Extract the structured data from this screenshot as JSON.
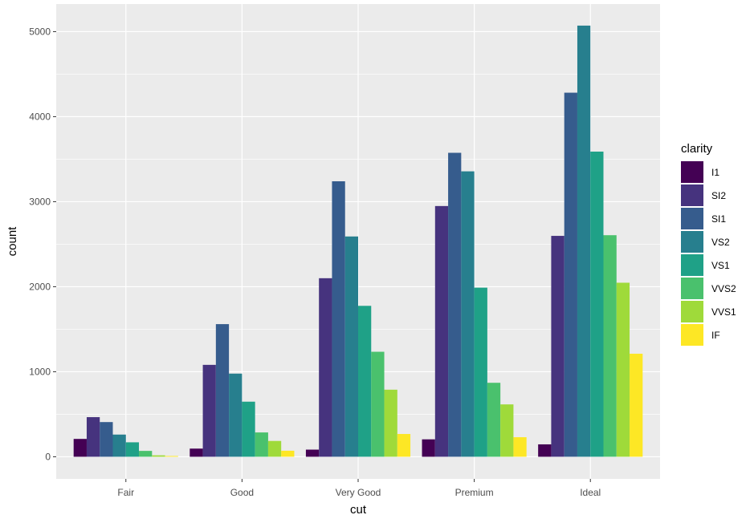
{
  "chart_data": {
    "type": "bar",
    "title": "",
    "xlabel": "cut",
    "ylabel": "count",
    "categories": [
      "Fair",
      "Good",
      "Very Good",
      "Premium",
      "Ideal"
    ],
    "ylim": [
      -260,
      5325
    ],
    "yticks": [
      0,
      1000,
      2000,
      3000,
      4000,
      5000
    ],
    "grid": true,
    "legend": {
      "title": "clarity",
      "placement": "right"
    },
    "series": [
      {
        "name": "I1",
        "color": "#440154",
        "values": [
          210,
          96,
          84,
          205,
          146
        ]
      },
      {
        "name": "SI2",
        "color": "#46337E",
        "values": [
          466,
          1081,
          2100,
          2949,
          2598
        ]
      },
      {
        "name": "SI1",
        "color": "#365C8D",
        "values": [
          408,
          1560,
          3240,
          3575,
          4282
        ]
      },
      {
        "name": "VS2",
        "color": "#277F8E",
        "values": [
          261,
          978,
          2591,
          3357,
          5071
        ]
      },
      {
        "name": "VS1",
        "color": "#1FA187",
        "values": [
          170,
          648,
          1775,
          1989,
          3589
        ]
      },
      {
        "name": "VVS2",
        "color": "#4AC16D",
        "values": [
          69,
          286,
          1235,
          870,
          2606
        ]
      },
      {
        "name": "VVS1",
        "color": "#9FDA3A",
        "values": [
          17,
          186,
          789,
          616,
          2047
        ]
      },
      {
        "name": "IF",
        "color": "#FDE725",
        "values": [
          9,
          71,
          268,
          230,
          1212
        ]
      }
    ]
  }
}
